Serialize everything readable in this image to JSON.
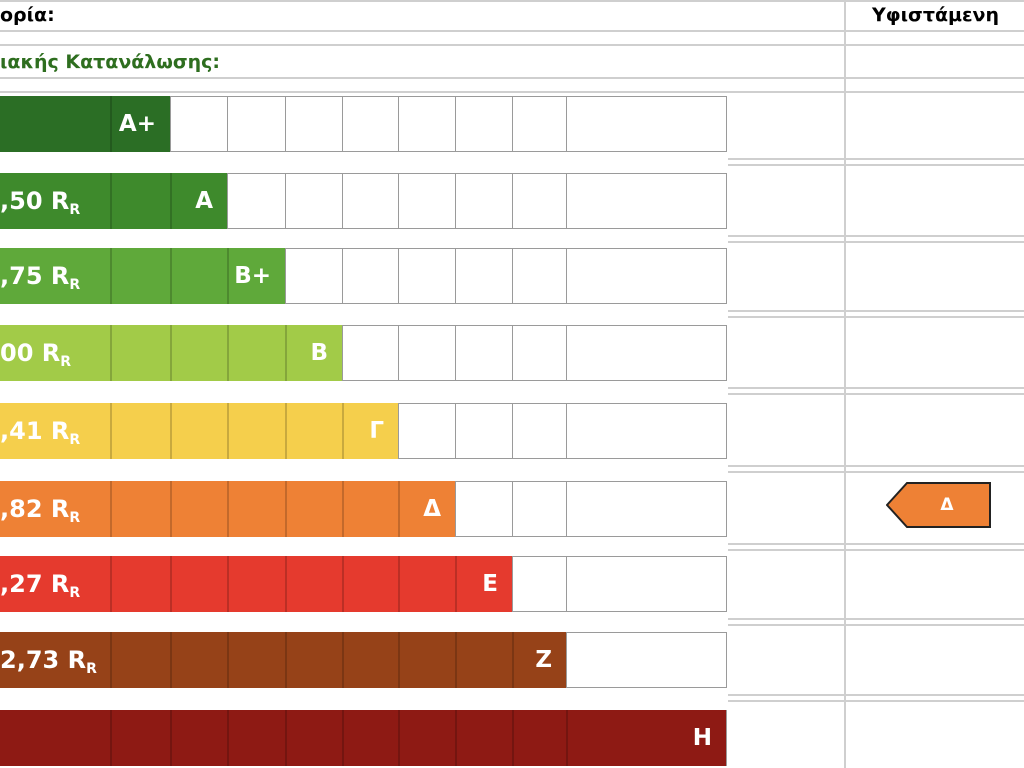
{
  "header": {
    "category_label": "ορία:",
    "existing_label": "Υφιστάμενη"
  },
  "subheader": {
    "consumption_label": "ιακής Κατανάλωσης:"
  },
  "classes": [
    {
      "letter": "A+",
      "value": "",
      "subscript": "",
      "color": "#2b6e25"
    },
    {
      "letter": "A",
      "value": ",50 R",
      "subscript": "R",
      "color": "#3e8a2c"
    },
    {
      "letter": "B+",
      "value": ",75 R",
      "subscript": "R",
      "color": "#5fa93a"
    },
    {
      "letter": "B",
      "value": "00 R",
      "subscript": "R",
      "color": "#a2cb48"
    },
    {
      "letter": "Γ",
      "value": ",41 R",
      "subscript": "R",
      "color": "#f5cf4c"
    },
    {
      "letter": "Δ",
      "value": ",82 R",
      "subscript": "R",
      "color": "#ee8135"
    },
    {
      "letter": "E",
      "value": ",27 R",
      "subscript": "R",
      "color": "#e53a2e"
    },
    {
      "letter": "Z",
      "value": "2,73 R",
      "subscript": "R",
      "color": "#964218"
    },
    {
      "letter": "H",
      "value": "",
      "subscript": "",
      "color": "#8e1a14"
    }
  ],
  "existing": {
    "letter": "Δ",
    "color": "#ee8135"
  }
}
